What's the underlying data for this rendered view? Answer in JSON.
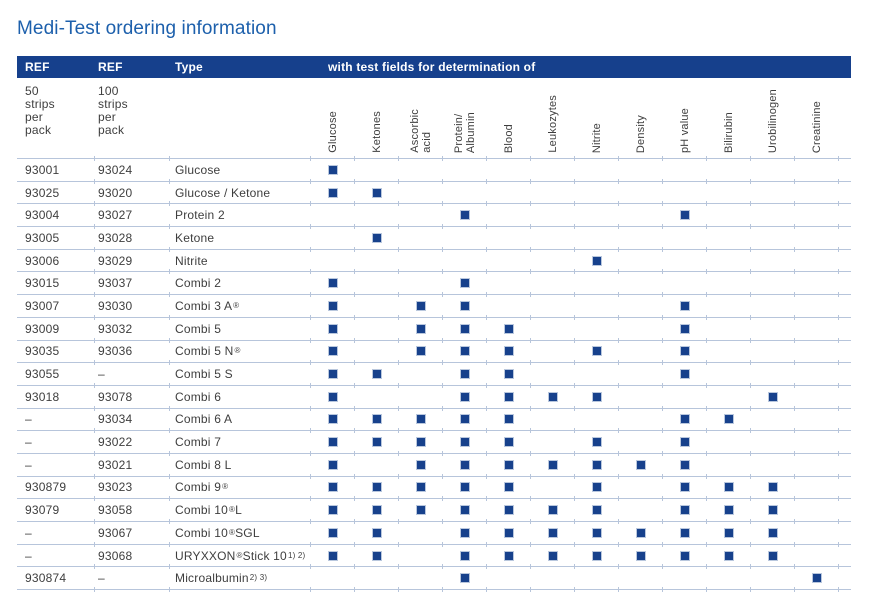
{
  "title": "Medi-Test ordering information",
  "colors": {
    "header_bar": "#16408c",
    "title_blue": "#1d60ac",
    "divider": "#b7c5db",
    "text": "#3e3e3e",
    "square": "#17418c",
    "square_border": "#b9c7dd"
  },
  "table": {
    "header": {
      "ref50": "REF",
      "ref100": "REF",
      "type": "Type",
      "tests": "with test fields for determination of"
    },
    "subheader": {
      "ref50": "50\nstrips\nper\npack",
      "ref100": "100\nstrips\nper\npack"
    },
    "fields": [
      {
        "name": "Glucose",
        "label": "Glucose"
      },
      {
        "name": "Ketones",
        "label": "Ketones"
      },
      {
        "name": "Ascorbic acid",
        "label": "Ascorbic\nacid"
      },
      {
        "name": "Protein/Albumin",
        "label": "Protein/\nAlbumin"
      },
      {
        "name": "Blood",
        "label": "Blood"
      },
      {
        "name": "Leukozytes",
        "label": "Leukozytes"
      },
      {
        "name": "Nitrite",
        "label": "Nitrite"
      },
      {
        "name": "Density",
        "label": "Density"
      },
      {
        "name": "pH value",
        "label": "pH value"
      },
      {
        "name": "Bilirubin",
        "label": "Bilirubin"
      },
      {
        "name": "Urobilinogen",
        "label": "Urobilinogen"
      },
      {
        "name": "Creatinine",
        "label": "Creatinine"
      }
    ],
    "rows": [
      {
        "ref50": "93001",
        "ref100": "93024",
        "type": [
          {
            "t": "Glucose"
          }
        ],
        "fields": [
          "Glucose"
        ]
      },
      {
        "ref50": "93025",
        "ref100": "93020",
        "type": [
          {
            "t": "Glucose / Ketone"
          }
        ],
        "fields": [
          "Glucose",
          "Ketones"
        ]
      },
      {
        "ref50": "93004",
        "ref100": "93027",
        "type": [
          {
            "t": "Protein 2"
          }
        ],
        "fields": [
          "Protein/Albumin",
          "pH value"
        ]
      },
      {
        "ref50": "93005",
        "ref100": "93028",
        "type": [
          {
            "t": "Ketone"
          }
        ],
        "fields": [
          "Ketones"
        ]
      },
      {
        "ref50": "93006",
        "ref100": "93029",
        "type": [
          {
            "t": "Nitrite"
          }
        ],
        "fields": [
          "Nitrite"
        ]
      },
      {
        "ref50": "93015",
        "ref100": "93037",
        "type": [
          {
            "t": "Combi 2"
          }
        ],
        "fields": [
          "Glucose",
          "Protein/Albumin"
        ]
      },
      {
        "ref50": "93007",
        "ref100": "93030",
        "type": [
          {
            "t": "Combi 3 A"
          },
          {
            "t": "®",
            "sup": true
          }
        ],
        "fields": [
          "Glucose",
          "Ascorbic acid",
          "Protein/Albumin",
          "pH value"
        ]
      },
      {
        "ref50": "93009",
        "ref100": "93032",
        "type": [
          {
            "t": "Combi 5"
          }
        ],
        "fields": [
          "Glucose",
          "Ascorbic acid",
          "Protein/Albumin",
          "Blood",
          "pH value"
        ]
      },
      {
        "ref50": "93035",
        "ref100": "93036",
        "type": [
          {
            "t": "Combi 5 N"
          },
          {
            "t": "®",
            "sup": true
          }
        ],
        "fields": [
          "Glucose",
          "Ascorbic acid",
          "Protein/Albumin",
          "Blood",
          "Nitrite",
          "pH value"
        ]
      },
      {
        "ref50": "93055",
        "ref100": "–",
        "type": [
          {
            "t": "Combi 5 S"
          }
        ],
        "fields": [
          "Glucose",
          "Ketones",
          "Protein/Albumin",
          "Blood",
          "pH value"
        ]
      },
      {
        "ref50": "93018",
        "ref100": "93078",
        "type": [
          {
            "t": "Combi 6"
          }
        ],
        "fields": [
          "Glucose",
          "Protein/Albumin",
          "Blood",
          "Leukozytes",
          "Nitrite",
          "Urobilinogen"
        ]
      },
      {
        "ref50": "–",
        "ref100": "93034",
        "type": [
          {
            "t": "Combi 6 A"
          }
        ],
        "fields": [
          "Glucose",
          "Ketones",
          "Ascorbic acid",
          "Protein/Albumin",
          "Blood",
          "pH value",
          "Bilirubin"
        ]
      },
      {
        "ref50": "–",
        "ref100": "93022",
        "type": [
          {
            "t": "Combi 7"
          }
        ],
        "fields": [
          "Glucose",
          "Ketones",
          "Ascorbic acid",
          "Protein/Albumin",
          "Blood",
          "Nitrite",
          "pH value"
        ]
      },
      {
        "ref50": "–",
        "ref100": "93021",
        "type": [
          {
            "t": "Combi 8 L"
          }
        ],
        "fields": [
          "Glucose",
          "Ascorbic acid",
          "Protein/Albumin",
          "Blood",
          "Leukozytes",
          "Nitrite",
          "Density",
          "pH value"
        ]
      },
      {
        "ref50": "930879",
        "ref100": "93023",
        "type": [
          {
            "t": "Combi 9"
          },
          {
            "t": "®",
            "sup": true
          }
        ],
        "fields": [
          "Glucose",
          "Ketones",
          "Ascorbic acid",
          "Protein/Albumin",
          "Blood",
          "Nitrite",
          "pH value",
          "Bilirubin",
          "Urobilinogen"
        ]
      },
      {
        "ref50": "93079",
        "ref100": "93058",
        "type": [
          {
            "t": "Combi 10"
          },
          {
            "t": "®",
            "sup": true
          },
          {
            "t": " L"
          }
        ],
        "fields": [
          "Glucose",
          "Ketones",
          "Ascorbic acid",
          "Protein/Albumin",
          "Blood",
          "Leukozytes",
          "Nitrite",
          "pH value",
          "Bilirubin",
          "Urobilinogen"
        ]
      },
      {
        "ref50": "–",
        "ref100": "93067",
        "type": [
          {
            "t": "Combi 10"
          },
          {
            "t": "®",
            "sup": true
          },
          {
            "t": " SGL"
          }
        ],
        "fields": [
          "Glucose",
          "Ketones",
          "Protein/Albumin",
          "Blood",
          "Leukozytes",
          "Nitrite",
          "Density",
          "pH value",
          "Bilirubin",
          "Urobilinogen"
        ]
      },
      {
        "ref50": "–",
        "ref100": "93068",
        "type": [
          {
            "t": "URYXXON"
          },
          {
            "t": "®",
            "sup": true
          },
          {
            "t": " Stick 10 "
          },
          {
            "t": "1) 2)",
            "sup": true
          }
        ],
        "fields": [
          "Glucose",
          "Ketones",
          "Protein/Albumin",
          "Blood",
          "Leukozytes",
          "Nitrite",
          "Density",
          "pH value",
          "Bilirubin",
          "Urobilinogen"
        ]
      },
      {
        "ref50": "930874",
        "ref100": "–",
        "type": [
          {
            "t": "Microalbumin "
          },
          {
            "t": "2) 3)",
            "sup": true
          }
        ],
        "fields": [
          "Protein/Albumin",
          "Creatinine"
        ]
      }
    ]
  }
}
